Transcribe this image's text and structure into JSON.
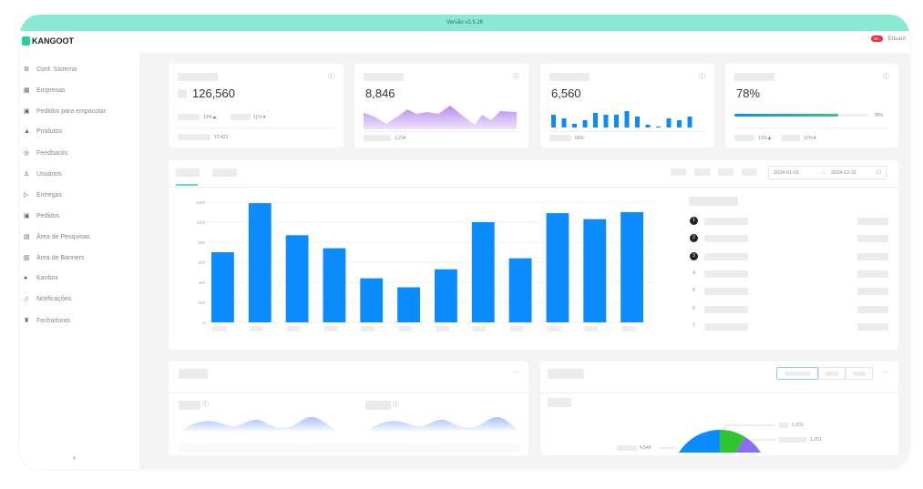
{
  "banner": {
    "version": "Versão v2.5.28"
  },
  "header": {
    "brand": "KANGOOT",
    "badge": "99+",
    "user": "Eduard"
  },
  "sidebar": {
    "items": [
      {
        "label": "Conf. Sistema",
        "icon": "gear-icon",
        "glyph": "⚙"
      },
      {
        "label": "Empresas",
        "icon": "building-icon",
        "glyph": "▦"
      },
      {
        "label": "Pedidos para empacotar",
        "icon": "package-icon",
        "glyph": "▣"
      },
      {
        "label": "Produtos",
        "icon": "product-icon",
        "glyph": "▲"
      },
      {
        "label": "Feedbacks",
        "icon": "feedback-icon",
        "glyph": "◎"
      },
      {
        "label": "Usuários",
        "icon": "users-icon",
        "glyph": "♙"
      },
      {
        "label": "Entregas",
        "icon": "delivery-icon",
        "glyph": "▷"
      },
      {
        "label": "Pedidos",
        "icon": "orders-icon",
        "glyph": "▣"
      },
      {
        "label": "Área de Pesquisas",
        "icon": "survey-icon",
        "glyph": "▤"
      },
      {
        "label": "Área de Banners",
        "icon": "banner-icon",
        "glyph": "▥"
      },
      {
        "label": "Kanbox",
        "icon": "kanbox-icon",
        "glyph": "●"
      },
      {
        "label": "Notificações",
        "icon": "bell-icon",
        "glyph": "♫"
      },
      {
        "label": "Fechaduras",
        "icon": "lock-icon",
        "glyph": "♜"
      }
    ],
    "collapse": "‹"
  },
  "stats": [
    {
      "value": "126,560",
      "change1": "12%",
      "change2": "11%",
      "footer": "12,423"
    },
    {
      "value": "8,846",
      "footer": "1,234"
    },
    {
      "value": "6,560",
      "footer": "60%"
    },
    {
      "value": "78%",
      "progress": 78,
      "progress_label": "78%",
      "change1": "12%",
      "change2": "11%"
    }
  ],
  "colors": {
    "accent": "#0a8cff",
    "banner": "#88ead2",
    "up": "#f5222d",
    "down": "#52c41a",
    "area": "#c9a7f5"
  },
  "sales": {
    "date_start": "2024-01-01",
    "date_sep": "→",
    "date_end": "2024-12-31",
    "ranks": [
      "1",
      "2",
      "3",
      "4",
      "5",
      "6",
      "7"
    ]
  },
  "chart_data": {
    "type": "bar",
    "categories": [
      "",
      "",
      "",
      "",
      "",
      "",
      "",
      "",
      "",
      "",
      "",
      ""
    ],
    "values": [
      700,
      1190,
      870,
      740,
      440,
      350,
      530,
      1000,
      640,
      1090,
      1030,
      1100
    ],
    "yticks": [
      "0",
      "200",
      "400",
      "600",
      "800",
      "1000",
      "1200"
    ],
    "ylim": [
      0,
      1200
    ],
    "color": "#0a8cff",
    "grid": true
  },
  "bottom": {
    "more": "···",
    "pie_labels": [
      "1,201",
      "1,251",
      "4,544"
    ],
    "pie_colors": [
      "#0a8cff",
      "#2fc52f",
      "#8b6cf6"
    ]
  }
}
